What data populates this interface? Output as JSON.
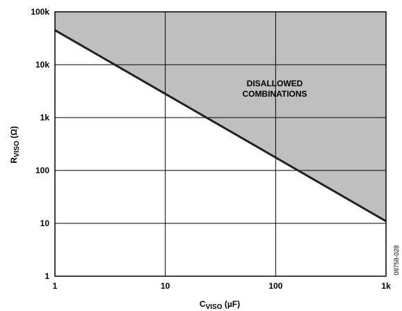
{
  "chart_data": {
    "type": "line",
    "xscale": "log",
    "yscale": "log",
    "xlim": [
      1,
      1000
    ],
    "ylim": [
      1,
      100000
    ],
    "grid": true,
    "x_ticks": [
      "1",
      "10",
      "100",
      "1k"
    ],
    "y_ticks": [
      "1",
      "10",
      "100",
      "1k",
      "10k",
      "100k"
    ],
    "xlabel": {
      "main": "C",
      "sub": "VISO",
      "unit": " (µF)"
    },
    "ylabel": {
      "main": "R",
      "sub": "VISO",
      "unit": " (Ω)"
    },
    "series": [
      {
        "x": [
          1,
          1000
        ],
        "y": [
          45000,
          11
        ],
        "color": "#231f20"
      }
    ],
    "shaded_region": {
      "label_lines": [
        "DISALLOWED",
        "COMBINATIONS"
      ],
      "color": "#bfbfbf",
      "side": "above"
    },
    "figure_id": "08758-028"
  }
}
